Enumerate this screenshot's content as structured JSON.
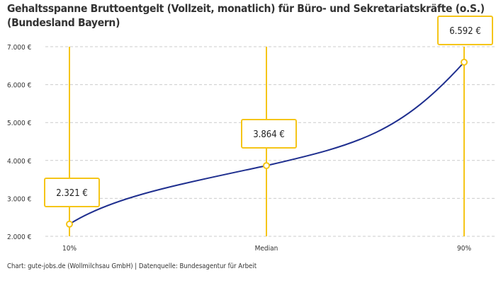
{
  "title": "Gehaltsspanne Bruttoentgelt (Vollzeit, monatlich) für Büro- und Sekretariatskräfte (o.S.) (Bundesland Bayern)",
  "source": "Chart: gute-jobs.de (Wollmilchsau GmbH) | Datenquelle: Bundesagentur für Arbeit",
  "chart_data": {
    "type": "line",
    "categories": [
      "10%",
      "Median",
      "90%"
    ],
    "values": [
      2321,
      3864,
      6592
    ],
    "data_labels": [
      "2.321 €",
      "3.864 €",
      "6.592 €"
    ],
    "yticks": [
      "2.000 €",
      "3.000 €",
      "4.000 €",
      "5.000 €",
      "6.000 €",
      "7.000 €"
    ],
    "ytick_values": [
      2000,
      3000,
      4000,
      5000,
      6000,
      7000
    ],
    "ylim": [
      2000,
      7000
    ],
    "grid": true,
    "colors": {
      "line": "#1f2f8f",
      "marker": "#f5c518",
      "grid": "#cccccc"
    }
  }
}
